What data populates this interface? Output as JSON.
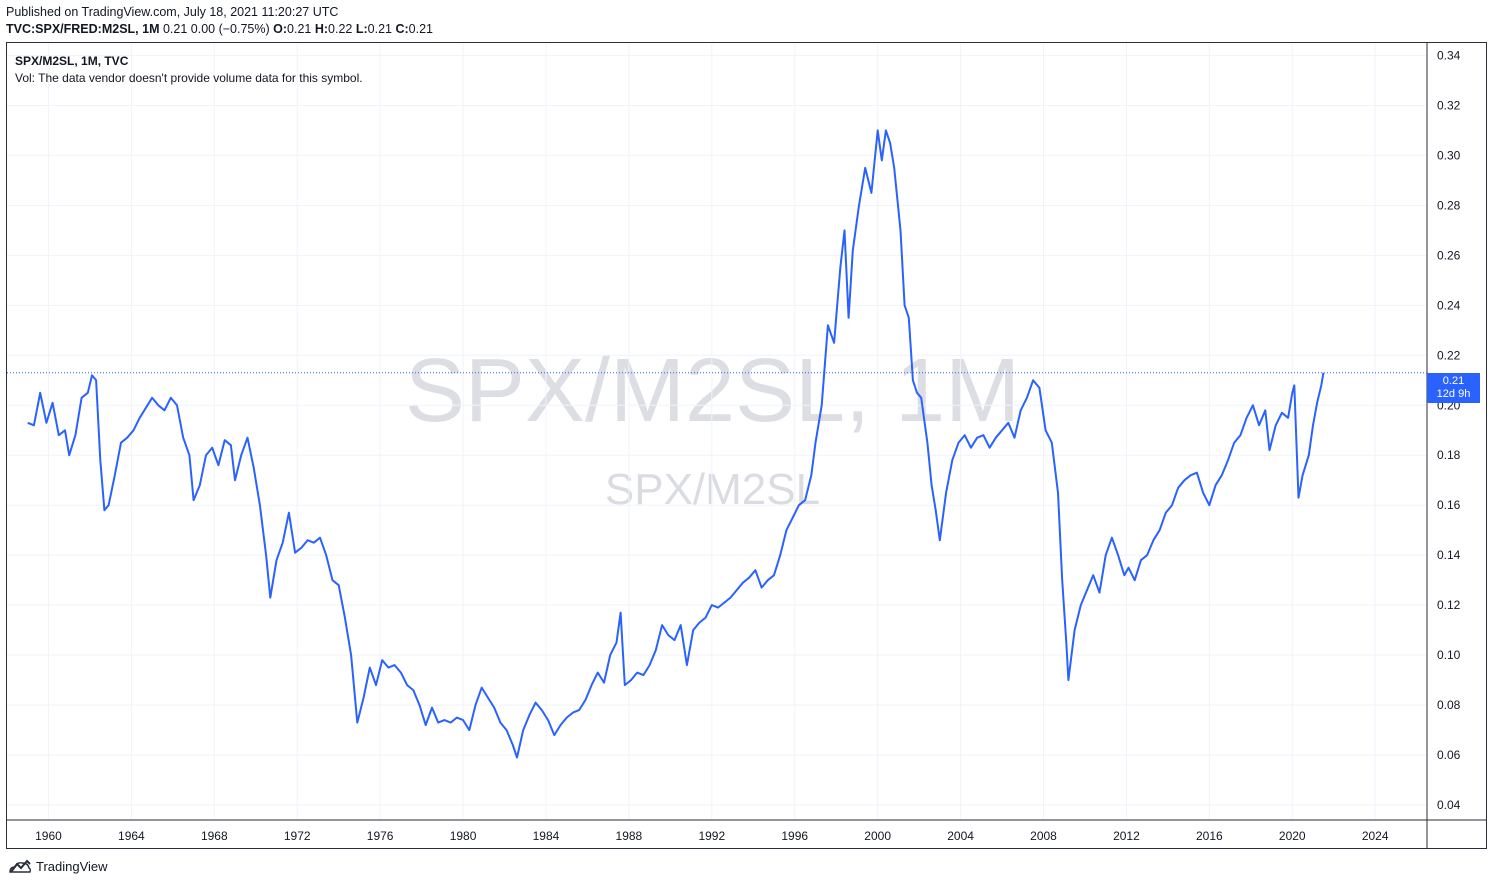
{
  "header": {
    "published": "Published on TradingView.com, July 18, 2021 11:20:27 UTC",
    "symbol_line_prefix": "TVC:SPX/FRED:M2SL, 1M",
    "symbol_line_values": " 0.21 0.00 (−0.75%) ",
    "ohlc": [
      {
        "k": "O:",
        "v": "0.21"
      },
      {
        "k": "H:",
        "v": "0.22"
      },
      {
        "k": "L:",
        "v": "0.21"
      },
      {
        "k": "C:",
        "v": "0.21"
      }
    ]
  },
  "legend": {
    "title": "SPX/M2SL, 1M, TVC",
    "vol_note": "Vol: The data vendor doesn't provide volume data for this symbol."
  },
  "watermark": {
    "big": "SPX/M2SL, 1M",
    "small": "SPX/M2SL"
  },
  "price_tag": {
    "value": "0.21",
    "countdown": "12d 9h"
  },
  "footer": {
    "brand": "TradingView"
  },
  "colors": {
    "line": "#2962ff",
    "grid": "#f0f3fa",
    "axis_text": "#131722",
    "tag_bg": "#2962ff"
  },
  "chart_data": {
    "type": "line",
    "title": "",
    "xlabel": "",
    "ylabel": "",
    "xlim": [
      1958,
      2026.5
    ],
    "ylim": [
      0.034,
      0.345
    ],
    "x_ticks": [
      "1960",
      "1964",
      "1968",
      "1972",
      "1976",
      "1980",
      "1984",
      "1988",
      "1992",
      "1996",
      "2000",
      "2004",
      "2008",
      "2012",
      "2016",
      "2020",
      "2024"
    ],
    "y_ticks": [
      "0.34",
      "0.32",
      "0.30",
      "0.28",
      "0.26",
      "0.24",
      "0.22",
      "0.20",
      "0.18",
      "0.16",
      "0.14",
      "0.12",
      "0.10",
      "0.08",
      "0.06",
      "0.04"
    ],
    "last_value": 0.213,
    "series": [
      {
        "points": [
          [
            1959.0,
            0.193
          ],
          [
            1959.3,
            0.192
          ],
          [
            1959.6,
            0.205
          ],
          [
            1959.9,
            0.193
          ],
          [
            1960.2,
            0.201
          ],
          [
            1960.5,
            0.188
          ],
          [
            1960.8,
            0.19
          ],
          [
            1961.0,
            0.18
          ],
          [
            1961.3,
            0.188
          ],
          [
            1961.6,
            0.203
          ],
          [
            1961.9,
            0.205
          ],
          [
            1962.1,
            0.212
          ],
          [
            1962.3,
            0.21
          ],
          [
            1962.5,
            0.178
          ],
          [
            1962.7,
            0.158
          ],
          [
            1962.9,
            0.16
          ],
          [
            1963.2,
            0.172
          ],
          [
            1963.5,
            0.185
          ],
          [
            1963.8,
            0.187
          ],
          [
            1964.1,
            0.19
          ],
          [
            1964.4,
            0.195
          ],
          [
            1964.7,
            0.199
          ],
          [
            1965.0,
            0.203
          ],
          [
            1965.3,
            0.2
          ],
          [
            1965.6,
            0.198
          ],
          [
            1965.9,
            0.203
          ],
          [
            1966.2,
            0.2
          ],
          [
            1966.5,
            0.187
          ],
          [
            1966.8,
            0.18
          ],
          [
            1967.0,
            0.162
          ],
          [
            1967.3,
            0.168
          ],
          [
            1967.6,
            0.18
          ],
          [
            1967.9,
            0.183
          ],
          [
            1968.2,
            0.176
          ],
          [
            1968.5,
            0.186
          ],
          [
            1968.8,
            0.184
          ],
          [
            1969.0,
            0.17
          ],
          [
            1969.3,
            0.18
          ],
          [
            1969.6,
            0.187
          ],
          [
            1969.9,
            0.175
          ],
          [
            1970.2,
            0.16
          ],
          [
            1970.5,
            0.14
          ],
          [
            1970.7,
            0.123
          ],
          [
            1971.0,
            0.138
          ],
          [
            1971.3,
            0.145
          ],
          [
            1971.6,
            0.157
          ],
          [
            1971.9,
            0.141
          ],
          [
            1972.2,
            0.143
          ],
          [
            1972.5,
            0.146
          ],
          [
            1972.8,
            0.145
          ],
          [
            1973.1,
            0.147
          ],
          [
            1973.4,
            0.14
          ],
          [
            1973.7,
            0.13
          ],
          [
            1974.0,
            0.128
          ],
          [
            1974.3,
            0.115
          ],
          [
            1974.6,
            0.1
          ],
          [
            1974.9,
            0.073
          ],
          [
            1975.2,
            0.083
          ],
          [
            1975.5,
            0.095
          ],
          [
            1975.8,
            0.088
          ],
          [
            1976.1,
            0.098
          ],
          [
            1976.4,
            0.095
          ],
          [
            1976.7,
            0.096
          ],
          [
            1977.0,
            0.093
          ],
          [
            1977.3,
            0.088
          ],
          [
            1977.6,
            0.086
          ],
          [
            1977.9,
            0.08
          ],
          [
            1978.2,
            0.072
          ],
          [
            1978.5,
            0.079
          ],
          [
            1978.8,
            0.073
          ],
          [
            1979.1,
            0.074
          ],
          [
            1979.4,
            0.073
          ],
          [
            1979.7,
            0.075
          ],
          [
            1980.0,
            0.074
          ],
          [
            1980.3,
            0.07
          ],
          [
            1980.6,
            0.08
          ],
          [
            1980.9,
            0.087
          ],
          [
            1981.2,
            0.083
          ],
          [
            1981.5,
            0.079
          ],
          [
            1981.8,
            0.073
          ],
          [
            1982.1,
            0.07
          ],
          [
            1982.4,
            0.064
          ],
          [
            1982.6,
            0.059
          ],
          [
            1982.9,
            0.07
          ],
          [
            1983.2,
            0.076
          ],
          [
            1983.5,
            0.081
          ],
          [
            1983.8,
            0.078
          ],
          [
            1984.1,
            0.074
          ],
          [
            1984.4,
            0.068
          ],
          [
            1984.7,
            0.072
          ],
          [
            1985.0,
            0.075
          ],
          [
            1985.3,
            0.077
          ],
          [
            1985.6,
            0.078
          ],
          [
            1985.9,
            0.082
          ],
          [
            1986.2,
            0.088
          ],
          [
            1986.5,
            0.093
          ],
          [
            1986.8,
            0.089
          ],
          [
            1987.1,
            0.1
          ],
          [
            1987.4,
            0.105
          ],
          [
            1987.6,
            0.117
          ],
          [
            1987.8,
            0.088
          ],
          [
            1988.1,
            0.09
          ],
          [
            1988.4,
            0.093
          ],
          [
            1988.7,
            0.092
          ],
          [
            1989.0,
            0.096
          ],
          [
            1989.3,
            0.102
          ],
          [
            1989.6,
            0.112
          ],
          [
            1989.9,
            0.108
          ],
          [
            1990.2,
            0.106
          ],
          [
            1990.5,
            0.112
          ],
          [
            1990.8,
            0.096
          ],
          [
            1991.1,
            0.11
          ],
          [
            1991.4,
            0.113
          ],
          [
            1991.7,
            0.115
          ],
          [
            1992.0,
            0.12
          ],
          [
            1992.3,
            0.119
          ],
          [
            1992.6,
            0.121
          ],
          [
            1992.9,
            0.123
          ],
          [
            1993.2,
            0.126
          ],
          [
            1993.5,
            0.129
          ],
          [
            1993.8,
            0.131
          ],
          [
            1994.1,
            0.134
          ],
          [
            1994.4,
            0.127
          ],
          [
            1994.7,
            0.13
          ],
          [
            1995.0,
            0.132
          ],
          [
            1995.3,
            0.14
          ],
          [
            1995.6,
            0.15
          ],
          [
            1995.9,
            0.155
          ],
          [
            1996.2,
            0.16
          ],
          [
            1996.5,
            0.162
          ],
          [
            1996.8,
            0.172
          ],
          [
            1997.0,
            0.185
          ],
          [
            1997.3,
            0.2
          ],
          [
            1997.6,
            0.232
          ],
          [
            1997.9,
            0.225
          ],
          [
            1998.2,
            0.255
          ],
          [
            1998.4,
            0.27
          ],
          [
            1998.6,
            0.235
          ],
          [
            1998.8,
            0.262
          ],
          [
            1999.1,
            0.28
          ],
          [
            1999.4,
            0.295
          ],
          [
            1999.7,
            0.285
          ],
          [
            2000.0,
            0.31
          ],
          [
            2000.2,
            0.298
          ],
          [
            2000.4,
            0.31
          ],
          [
            2000.6,
            0.305
          ],
          [
            2000.8,
            0.295
          ],
          [
            2001.1,
            0.27
          ],
          [
            2001.3,
            0.24
          ],
          [
            2001.5,
            0.235
          ],
          [
            2001.7,
            0.21
          ],
          [
            2001.9,
            0.205
          ],
          [
            2002.1,
            0.203
          ],
          [
            2002.4,
            0.185
          ],
          [
            2002.6,
            0.168
          ],
          [
            2002.8,
            0.158
          ],
          [
            2003.0,
            0.146
          ],
          [
            2003.3,
            0.165
          ],
          [
            2003.6,
            0.178
          ],
          [
            2003.9,
            0.185
          ],
          [
            2004.2,
            0.188
          ],
          [
            2004.5,
            0.183
          ],
          [
            2004.8,
            0.187
          ],
          [
            2005.1,
            0.188
          ],
          [
            2005.4,
            0.183
          ],
          [
            2005.7,
            0.187
          ],
          [
            2006.0,
            0.19
          ],
          [
            2006.3,
            0.193
          ],
          [
            2006.6,
            0.187
          ],
          [
            2006.9,
            0.198
          ],
          [
            2007.2,
            0.203
          ],
          [
            2007.5,
            0.21
          ],
          [
            2007.8,
            0.207
          ],
          [
            2008.1,
            0.19
          ],
          [
            2008.4,
            0.185
          ],
          [
            2008.7,
            0.165
          ],
          [
            2008.9,
            0.13
          ],
          [
            2009.1,
            0.105
          ],
          [
            2009.2,
            0.09
          ],
          [
            2009.5,
            0.11
          ],
          [
            2009.8,
            0.12
          ],
          [
            2010.1,
            0.126
          ],
          [
            2010.4,
            0.132
          ],
          [
            2010.7,
            0.125
          ],
          [
            2011.0,
            0.14
          ],
          [
            2011.3,
            0.147
          ],
          [
            2011.6,
            0.14
          ],
          [
            2011.9,
            0.132
          ],
          [
            2012.1,
            0.135
          ],
          [
            2012.4,
            0.13
          ],
          [
            2012.7,
            0.138
          ],
          [
            2013.0,
            0.14
          ],
          [
            2013.3,
            0.146
          ],
          [
            2013.6,
            0.15
          ],
          [
            2013.9,
            0.157
          ],
          [
            2014.2,
            0.16
          ],
          [
            2014.5,
            0.167
          ],
          [
            2014.8,
            0.17
          ],
          [
            2015.1,
            0.172
          ],
          [
            2015.4,
            0.173
          ],
          [
            2015.7,
            0.165
          ],
          [
            2016.0,
            0.16
          ],
          [
            2016.3,
            0.168
          ],
          [
            2016.6,
            0.172
          ],
          [
            2016.9,
            0.178
          ],
          [
            2017.2,
            0.185
          ],
          [
            2017.5,
            0.188
          ],
          [
            2017.8,
            0.195
          ],
          [
            2018.1,
            0.2
          ],
          [
            2018.4,
            0.192
          ],
          [
            2018.7,
            0.198
          ],
          [
            2018.9,
            0.182
          ],
          [
            2019.2,
            0.192
          ],
          [
            2019.5,
            0.197
          ],
          [
            2019.8,
            0.195
          ],
          [
            2020.0,
            0.205
          ],
          [
            2020.1,
            0.208
          ],
          [
            2020.3,
            0.163
          ],
          [
            2020.5,
            0.172
          ],
          [
            2020.8,
            0.18
          ],
          [
            2021.0,
            0.192
          ],
          [
            2021.2,
            0.201
          ],
          [
            2021.4,
            0.208
          ],
          [
            2021.5,
            0.213
          ]
        ]
      }
    ]
  }
}
